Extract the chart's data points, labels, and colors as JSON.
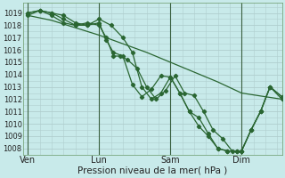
{
  "xlabel": "Pression niveau de la mer( hPa )",
  "background_color": "#c8eaea",
  "grid_color": "#b0cece",
  "line_color": "#2a6632",
  "ylim": [
    1007.5,
    1019.8
  ],
  "yticks": [
    1008,
    1009,
    1010,
    1011,
    1012,
    1013,
    1014,
    1015,
    1016,
    1017,
    1018,
    1019
  ],
  "xtick_labels": [
    "Ven",
    "Lun",
    "Sam",
    "Dim"
  ],
  "xtick_positions": [
    0,
    30,
    60,
    90
  ],
  "vline_positions": [
    0,
    30,
    60,
    90
  ],
  "xlim": [
    -2,
    107
  ],
  "series": [
    {
      "x": [
        0,
        10,
        20,
        30,
        40,
        50,
        60,
        70,
        80,
        90,
        100,
        107
      ],
      "y": [
        1018.8,
        1018.4,
        1017.8,
        1017.2,
        1016.5,
        1015.8,
        1015.0,
        1014.2,
        1013.4,
        1012.5,
        1012.2,
        1012.0
      ],
      "marker": false,
      "lw": 0.9
    },
    {
      "x": [
        0,
        5,
        10,
        15,
        20,
        25,
        30,
        33,
        36,
        39,
        42,
        46,
        50,
        54,
        58,
        62,
        66,
        70,
        74,
        78,
        82,
        86,
        90,
        94,
        98,
        102,
        107
      ],
      "y": [
        1018.8,
        1019.2,
        1019.0,
        1018.5,
        1018.0,
        1018.2,
        1018.0,
        1017.0,
        1015.5,
        1015.5,
        1015.2,
        1014.5,
        1013.0,
        1012.0,
        1012.7,
        1013.9,
        1012.5,
        1012.3,
        1011.0,
        1009.5,
        1008.8,
        1007.8,
        1007.8,
        1009.5,
        1011.0,
        1013.0,
        1012.2
      ],
      "marker": true,
      "lw": 0.9
    },
    {
      "x": [
        0,
        5,
        10,
        15,
        20,
        25,
        30,
        33,
        36,
        40,
        44,
        48,
        52,
        56,
        60,
        64,
        68,
        72,
        76,
        80,
        84,
        88,
        90,
        94,
        98,
        102,
        107
      ],
      "y": [
        1019.0,
        1019.2,
        1018.8,
        1018.2,
        1018.0,
        1018.0,
        1018.2,
        1016.8,
        1015.8,
        1015.5,
        1013.2,
        1012.2,
        1012.8,
        1013.9,
        1013.8,
        1012.5,
        1011.0,
        1010.5,
        1009.2,
        1008.0,
        1007.8,
        1007.8,
        1007.8,
        1009.5,
        1011.0,
        1013.0,
        1012.2
      ],
      "marker": true,
      "lw": 0.9
    },
    {
      "x": [
        0,
        5,
        10,
        15,
        20,
        25,
        30,
        35,
        40,
        44,
        48,
        52,
        56,
        60,
        64,
        68,
        72,
        76,
        80,
        84,
        88,
        90,
        94,
        98,
        102,
        107
      ],
      "y": [
        1019.0,
        1019.2,
        1019.0,
        1018.8,
        1018.2,
        1018.0,
        1018.5,
        1018.0,
        1017.0,
        1015.8,
        1013.0,
        1012.0,
        1012.5,
        1013.8,
        1012.5,
        1011.0,
        1009.8,
        1009.0,
        1008.0,
        1007.8,
        1007.8,
        1007.8,
        1009.5,
        1011.0,
        1013.0,
        1012.0
      ],
      "marker": true,
      "lw": 0.9
    }
  ]
}
